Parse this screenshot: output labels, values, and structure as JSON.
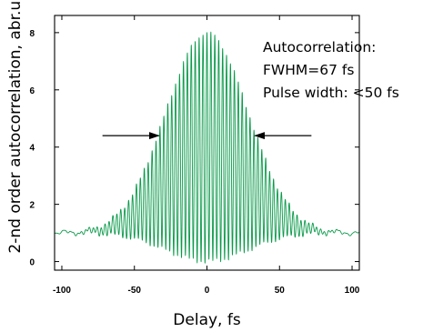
{
  "chart_data": {
    "type": "line",
    "title": "",
    "xlabel": "Delay, fs",
    "ylabel": "2-nd order autocorrelation, abr.u.",
    "xlim": [
      -105,
      105
    ],
    "ylim": [
      -0.3,
      8.6
    ],
    "xticks": [
      -100,
      -50,
      0,
      50,
      100
    ],
    "yticks": [
      0,
      2,
      4,
      6,
      8
    ],
    "grid": false,
    "series": [
      {
        "color": "#0a9a4a",
        "model": {
          "baseline": 1.0,
          "peak": 8.0,
          "fringe_period_fs": 2.7,
          "envelope_fwhm_fs": 67,
          "x_range": [
            -105,
            105
          ],
          "samples": 2400
        }
      }
    ],
    "annotations": [
      {
        "text": "Autocorrelation:"
      },
      {
        "text": "FWHM=67 fs"
      },
      {
        "text": "Pulse width: <50 fs"
      }
    ],
    "fwhm_arrows": {
      "y": 4.4,
      "left": {
        "from": -72,
        "to": -33
      },
      "right": {
        "from": 72,
        "to": 33
      }
    }
  }
}
